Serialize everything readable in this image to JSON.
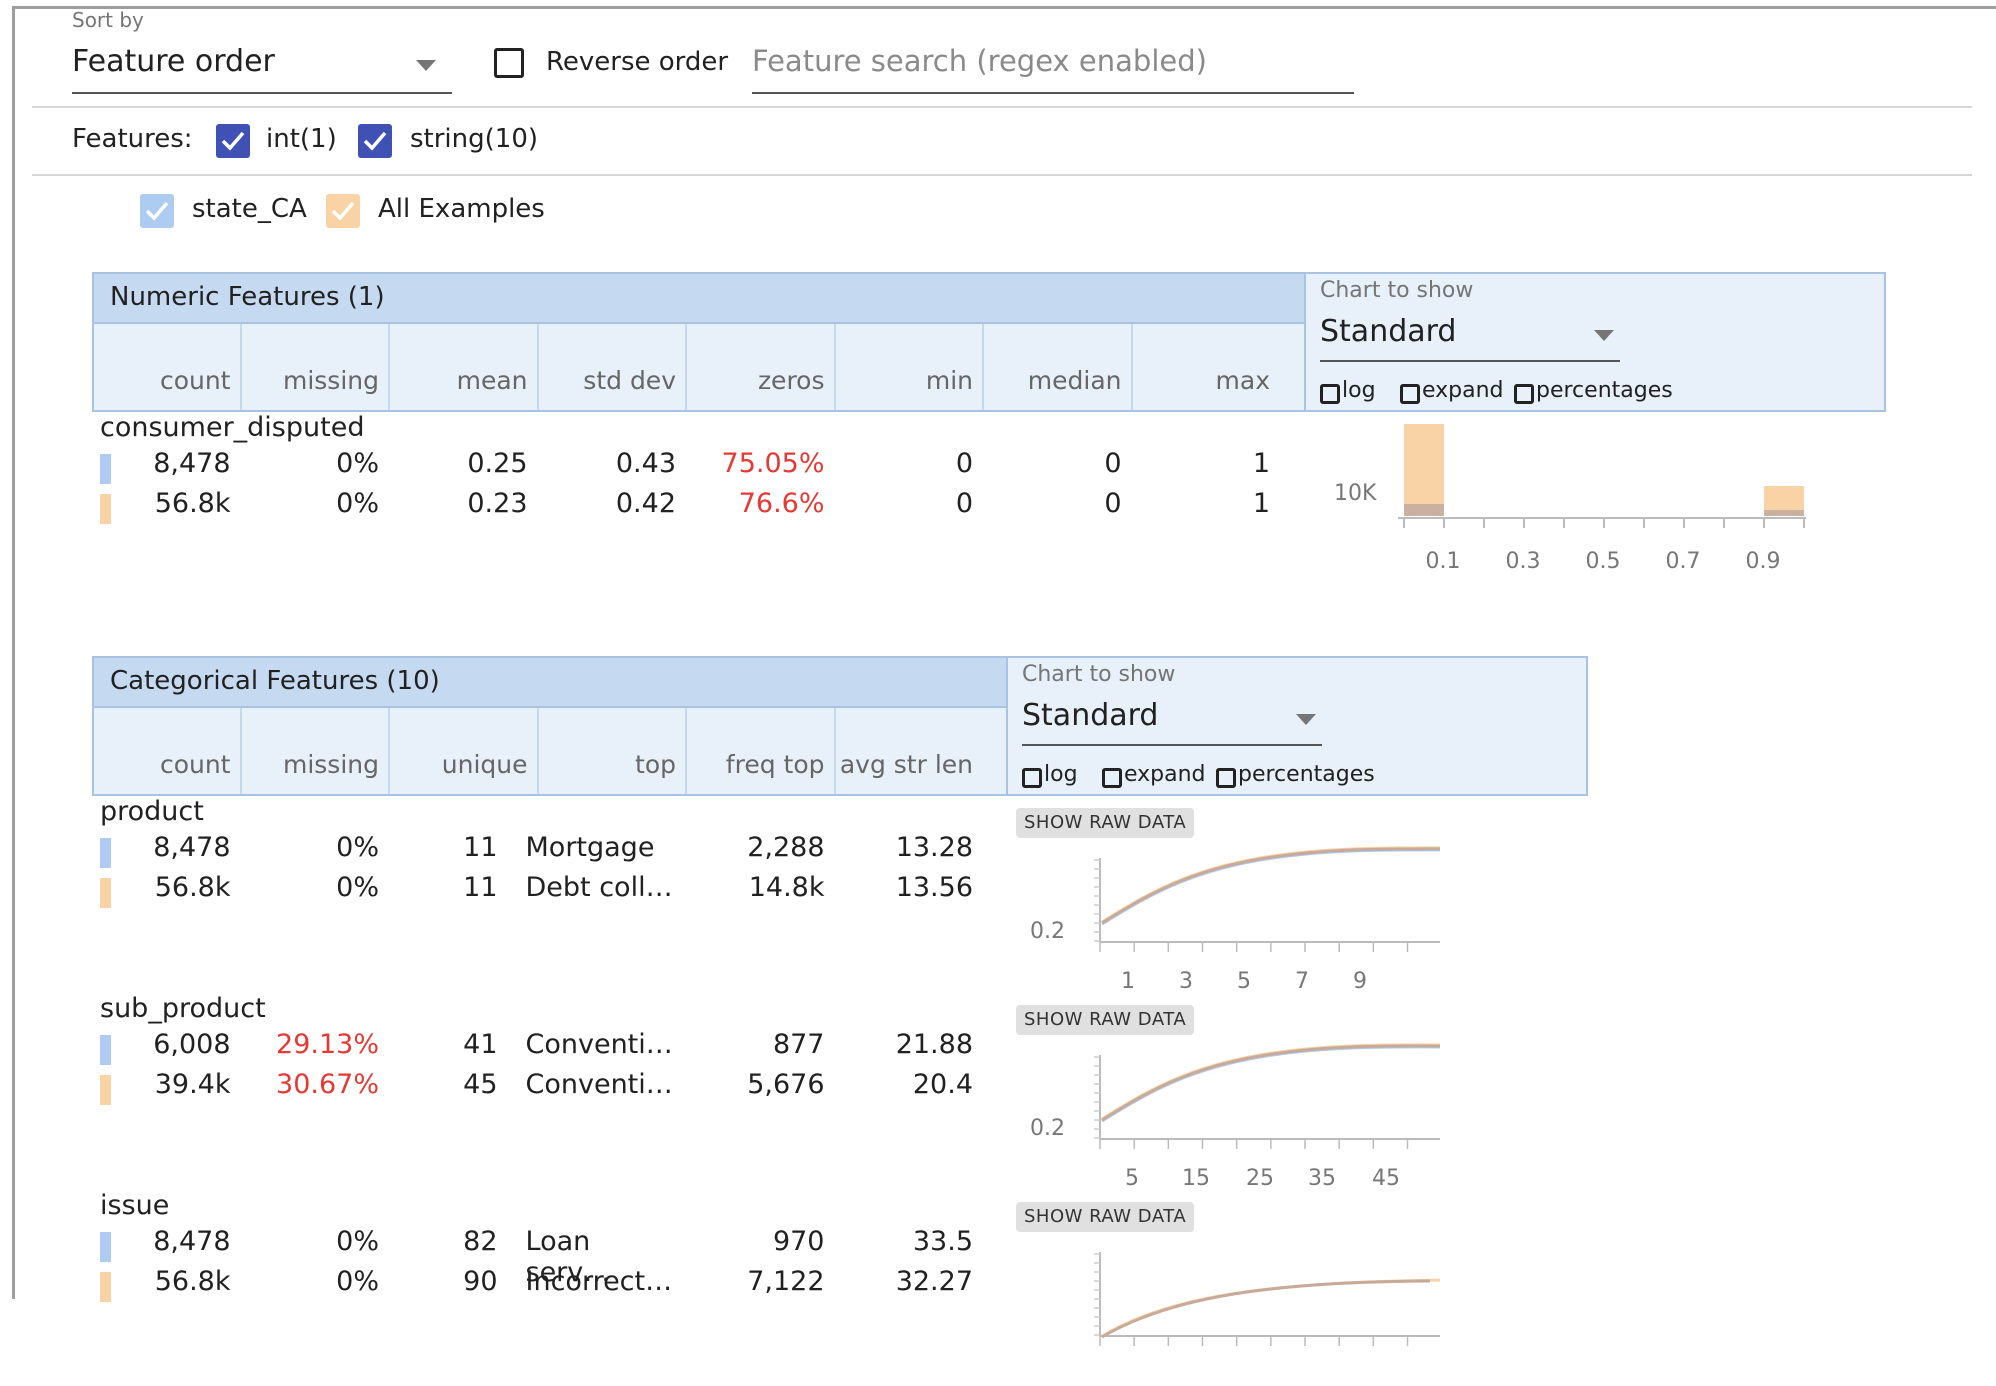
{
  "controls": {
    "sort_by_label": "Sort by",
    "sort_value": "Feature order",
    "reverse_label": "Reverse order",
    "search_placeholder": "Feature search (regex enabled)",
    "features_label": "Features:",
    "feature_types": [
      {
        "label": "int(1)",
        "checked": true
      },
      {
        "label": "string(10)",
        "checked": true
      }
    ]
  },
  "legend": [
    {
      "label": "state_CA",
      "color": "#aecbf2"
    },
    {
      "label": "All Examples",
      "color": "#f9d3a5"
    }
  ],
  "numeric": {
    "title": "Numeric Features (1)",
    "columns": [
      "count",
      "missing",
      "mean",
      "std dev",
      "zeros",
      "min",
      "median",
      "max"
    ],
    "chart_label": "Chart to show",
    "chart_value": "Standard",
    "options": [
      "log",
      "expand",
      "percentages"
    ],
    "features": [
      {
        "name": "consumer_disputed",
        "rows": [
          [
            "8,478",
            "0%",
            "0.25",
            "0.43",
            "75.05%",
            "0",
            "0",
            "1"
          ],
          [
            "56.8k",
            "0%",
            "0.23",
            "0.42",
            "76.6%",
            "0",
            "0",
            "1"
          ]
        ],
        "chart": {
          "y_label": "10K",
          "x_ticks": [
            "0.1",
            "0.3",
            "0.5",
            "0.7",
            "0.9"
          ]
        }
      }
    ]
  },
  "categorical": {
    "title": "Categorical Features (10)",
    "columns": [
      "count",
      "missing",
      "unique",
      "top",
      "freq top",
      "avg str len"
    ],
    "chart_label": "Chart to show",
    "chart_value": "Standard",
    "options": [
      "log",
      "expand",
      "percentages"
    ],
    "raw_button": "SHOW RAW DATA",
    "features": [
      {
        "name": "product",
        "rows": [
          [
            "8,478",
            "0%",
            "11",
            "Mortgage",
            "2,288",
            "13.28"
          ],
          [
            "56.8k",
            "0%",
            "11",
            "Debt coll…",
            "14.8k",
            "13.56"
          ]
        ],
        "chart": {
          "y_label": "0.2",
          "x_ticks": [
            "1",
            "3",
            "5",
            "7",
            "9"
          ]
        }
      },
      {
        "name": "sub_product",
        "rows": [
          [
            "6,008",
            "29.13%",
            "41",
            "Conventi…",
            "877",
            "21.88"
          ],
          [
            "39.4k",
            "30.67%",
            "45",
            "Conventi…",
            "5,676",
            "20.4"
          ]
        ],
        "chart": {
          "y_label": "0.2",
          "x_ticks": [
            "5",
            "15",
            "25",
            "35",
            "45"
          ]
        }
      },
      {
        "name": "issue",
        "rows": [
          [
            "8,478",
            "0%",
            "82",
            "Loan serv…",
            "970",
            "33.5"
          ],
          [
            "56.8k",
            "0%",
            "90",
            "Incorrect…",
            "7,122",
            "32.27"
          ]
        ]
      }
    ]
  }
}
